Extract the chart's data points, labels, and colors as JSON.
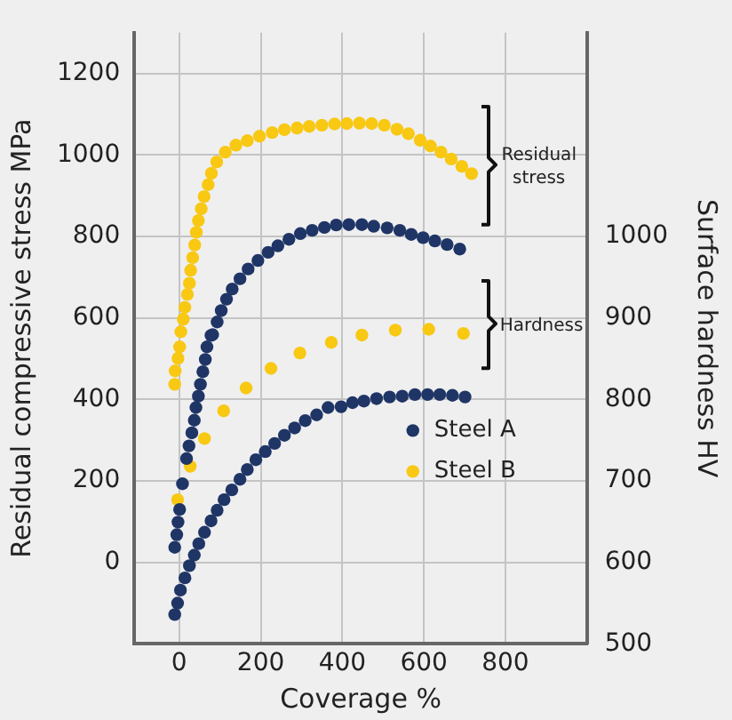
{
  "chart_data": {
    "type": "scatter",
    "xlabel": "Coverage %",
    "ylabel": "Residual compressive stress MPa",
    "y2label": "Surface hardness HV",
    "xlim": [
      -110,
      1000
    ],
    "xticks": [
      0,
      200,
      400,
      600,
      800
    ],
    "ylim": [
      -200,
      1300
    ],
    "yticks": [
      0,
      200,
      400,
      600,
      800,
      1000,
      1200
    ],
    "y2lim": [
      500,
      1250
    ],
    "y2ticks": [
      500,
      600,
      700,
      800,
      900,
      1000
    ],
    "grid": true,
    "legend": "bottom right",
    "marker": "circle",
    "annotations": [
      "Residual stress",
      "Hardness"
    ],
    "series": [
      {
        "name": "Steel A",
        "color": "#1f3566",
        "x": [
          -11,
          -6,
          -3,
          1,
          8,
          18,
          24,
          31,
          37,
          41,
          47,
          52,
          58,
          64,
          68,
          78,
          82,
          93,
          103,
          116,
          130,
          149,
          169,
          193,
          218,
          242,
          269,
          297,
          326,
          356,
          385,
          416,
          448,
          477,
          510,
          541,
          569,
          598,
          627,
          657,
          688
        ],
        "values": [
          37,
          68,
          99,
          130,
          193,
          255,
          286,
          318,
          349,
          380,
          408,
          437,
          468,
          498,
          529,
          557,
          559,
          590,
          618,
          646,
          671,
          696,
          720,
          741,
          761,
          777,
          793,
          807,
          815,
          822,
          828,
          829,
          829,
          825,
          821,
          815,
          805,
          797,
          789,
          780,
          769
        ]
      },
      {
        "name": "Steel B",
        "color": "#f8c813",
        "x": [
          -11,
          -10,
          -3,
          1,
          4,
          10,
          14,
          20,
          25,
          28,
          33,
          38,
          42,
          47,
          54,
          61,
          71,
          79,
          92,
          113,
          139,
          167,
          197,
          228,
          258,
          289,
          319,
          350,
          381,
          411,
          442,
          472,
          503,
          534,
          562,
          591,
          616,
          642,
          667,
          693,
          717
        ],
        "values": [
          437,
          470,
          501,
          529,
          566,
          597,
          626,
          658,
          685,
          717,
          748,
          779,
          810,
          839,
          868,
          898,
          927,
          955,
          983,
          1007,
          1024,
          1035,
          1046,
          1055,
          1062,
          1066,
          1070,
          1073,
          1076,
          1077,
          1078,
          1077,
          1073,
          1063,
          1052,
          1036,
          1022,
          1007,
          990,
          972,
          954
        ]
      },
      {
        "color": "#1f3566",
        "axis": "y2",
        "x": [
          -11,
          -4,
          3,
          14,
          25,
          37,
          48,
          62,
          78,
          93,
          110,
          129,
          149,
          167,
          188,
          211,
          234,
          258,
          283,
          309,
          337,
          365,
          397,
          425,
          453,
          484,
          516,
          547,
          578,
          609,
          639,
          670,
          701
        ],
        "values": [
          536,
          550,
          566,
          581,
          596,
          609,
          623,
          637,
          651,
          664,
          677,
          689,
          702,
          714,
          726,
          736,
          746,
          756,
          765,
          774,
          781,
          790,
          791,
          796,
          798,
          801,
          803,
          804,
          806,
          806,
          806,
          805,
          803
        ]
      },
      {
        "color": "#f8c813",
        "axis": "y2",
        "x": [
          -4,
          27,
          62,
          109,
          164,
          225,
          296,
          373,
          448,
          530,
          612,
          697
        ],
        "values": [
          677,
          718,
          752,
          786,
          814,
          838,
          857,
          870,
          879,
          885,
          886,
          881
        ]
      }
    ]
  }
}
